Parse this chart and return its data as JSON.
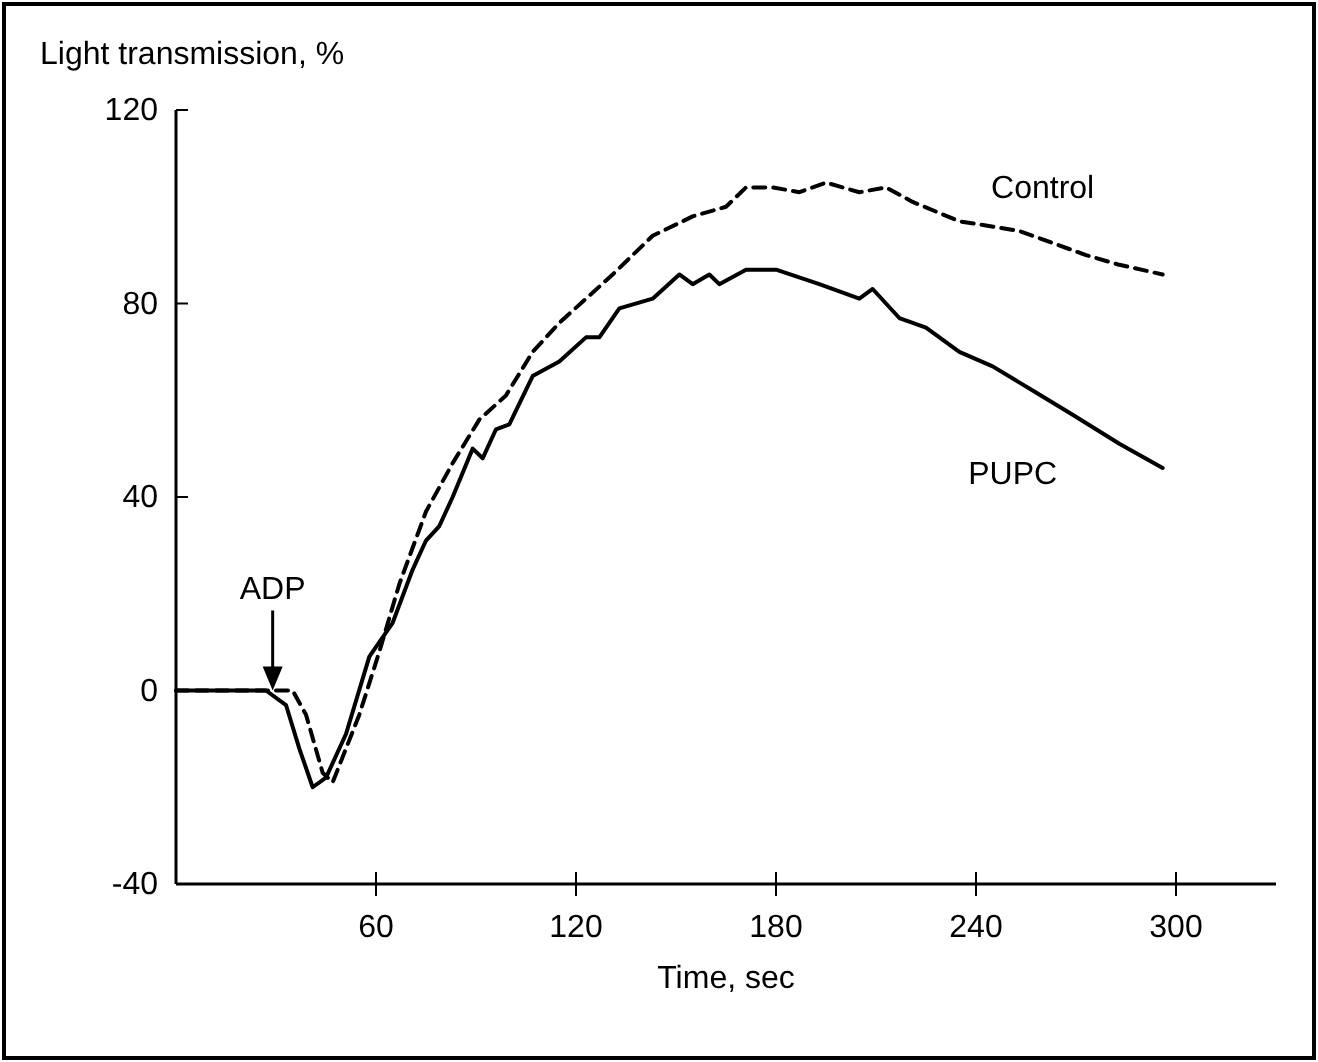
{
  "chart_data": {
    "type": "line",
    "xlabel": "Time, sec",
    "ylabel": "Light transmission, %",
    "xlim": [
      0,
      330
    ],
    "xticks": [
      60,
      120,
      180,
      240,
      300
    ],
    "ylim": [
      -40,
      120
    ],
    "yticks": [
      -40,
      0,
      40,
      80,
      120
    ],
    "grid": false,
    "legend": false,
    "marker": "none",
    "annotations": [
      {
        "text": "ADP",
        "x": 29,
        "y": 0
      }
    ],
    "series": [
      {
        "name": "Control",
        "color": "#000000",
        "line_style": "dashed",
        "x": [
          0,
          27,
          35,
          39,
          44,
          47,
          55,
          61,
          67,
          75,
          83,
          91,
          99,
          107,
          115,
          123,
          131,
          143,
          155,
          165,
          171,
          179,
          187,
          195,
          205,
          213,
          221,
          235,
          253,
          273,
          283,
          296
        ],
        "values": [
          0,
          0,
          0,
          -5,
          -17,
          -19,
          -5,
          8,
          22,
          37,
          47,
          56,
          61,
          70,
          76,
          81,
          86,
          94,
          98,
          100,
          104,
          104,
          103,
          105,
          103,
          104,
          101,
          97,
          95,
          90,
          88,
          86
        ]
      },
      {
        "name": "PUPC",
        "color": "#000000",
        "line_style": "solid",
        "x": [
          0,
          27,
          33,
          37,
          41,
          45,
          51,
          58,
          65,
          71,
          75,
          79,
          83,
          89,
          92,
          96,
          100,
          107,
          115,
          123,
          127,
          133,
          143,
          151,
          155,
          160,
          163,
          171,
          180,
          193,
          205,
          209,
          217,
          225,
          235,
          245,
          257,
          269,
          283,
          296
        ],
        "values": [
          0,
          0,
          -3,
          -12,
          -20,
          -18,
          -9,
          7,
          14,
          25,
          31,
          34,
          40,
          50,
          48,
          54,
          55,
          65,
          68,
          73,
          73,
          79,
          81,
          86,
          84,
          86,
          84,
          87,
          87,
          84,
          81,
          83,
          77,
          75,
          70,
          67,
          62,
          57,
          51,
          46
        ]
      }
    ]
  }
}
